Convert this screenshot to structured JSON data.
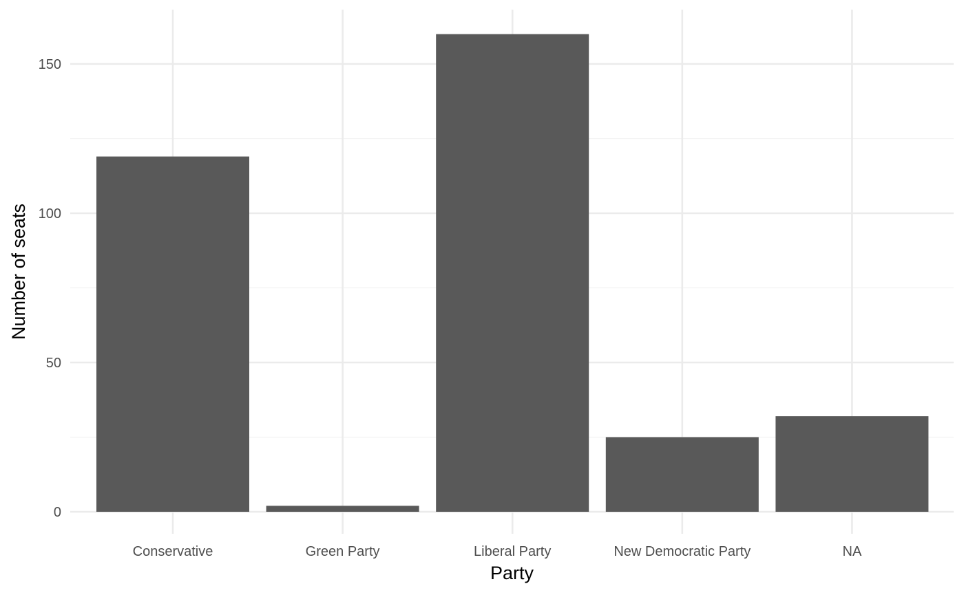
{
  "chart_data": {
    "type": "bar",
    "title": "",
    "xlabel": "Party",
    "ylabel": "Number of seats",
    "categories": [
      "Conservative",
      "Green Party",
      "Liberal Party",
      "New Democratic Party",
      "NA"
    ],
    "values": [
      119,
      2,
      160,
      25,
      32
    ],
    "ylim": [
      0,
      168
    ],
    "y_ticks": [
      0,
      50,
      100,
      150
    ],
    "y_tick_labels": [
      "0",
      "50",
      "100",
      "150"
    ],
    "grid": true,
    "legend": "none",
    "bar_color": "#595959",
    "grid_major_color": "#ebebeb",
    "grid_minor_color": "#f2f2f2",
    "background_color": "#ffffff"
  }
}
